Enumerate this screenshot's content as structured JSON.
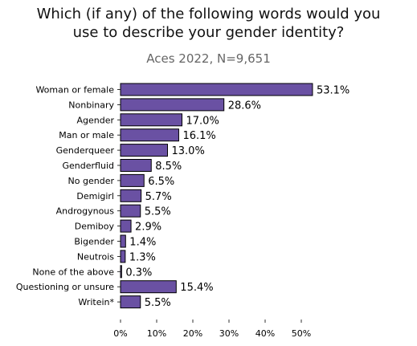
{
  "title_lines": [
    "Which (if any) of the following words would you",
    "use to describe your gender identity?"
  ],
  "subtitle": "Aces 2022, N=9,651",
  "chart_data": {
    "type": "bar",
    "orientation": "horizontal",
    "title": "Which (if any) of the following words would you use to describe your gender identity?",
    "subtitle": "Aces 2022, N=9,651",
    "categories": [
      "Woman or female",
      "Nonbinary",
      "Agender",
      "Man or male",
      "Genderqueer",
      "Genderfluid",
      "No gender",
      "Demigirl",
      "Androgynous",
      "Demiboy",
      "Bigender",
      "Neutrois",
      "None of the above",
      "Questioning or unsure",
      "Writein*"
    ],
    "values": [
      53.1,
      28.6,
      17.0,
      16.1,
      13.0,
      8.5,
      6.5,
      5.7,
      5.5,
      2.9,
      1.4,
      1.3,
      0.3,
      15.4,
      5.5
    ],
    "value_labels": [
      "53.1%",
      "28.6%",
      "17.0%",
      "16.1%",
      "13.0%",
      "8.5%",
      "6.5%",
      "5.7%",
      "5.5%",
      "2.9%",
      "1.4%",
      "1.3%",
      "0.3%",
      "15.4%",
      "5.5%"
    ],
    "xticks": [
      "0%",
      "10%",
      "20%",
      "30%",
      "40%",
      "50%"
    ],
    "xlim": [
      0,
      55
    ],
    "bar_color": "#6a51a3",
    "bar_edge_color": "#000000",
    "grid": false,
    "legend": "none"
  }
}
